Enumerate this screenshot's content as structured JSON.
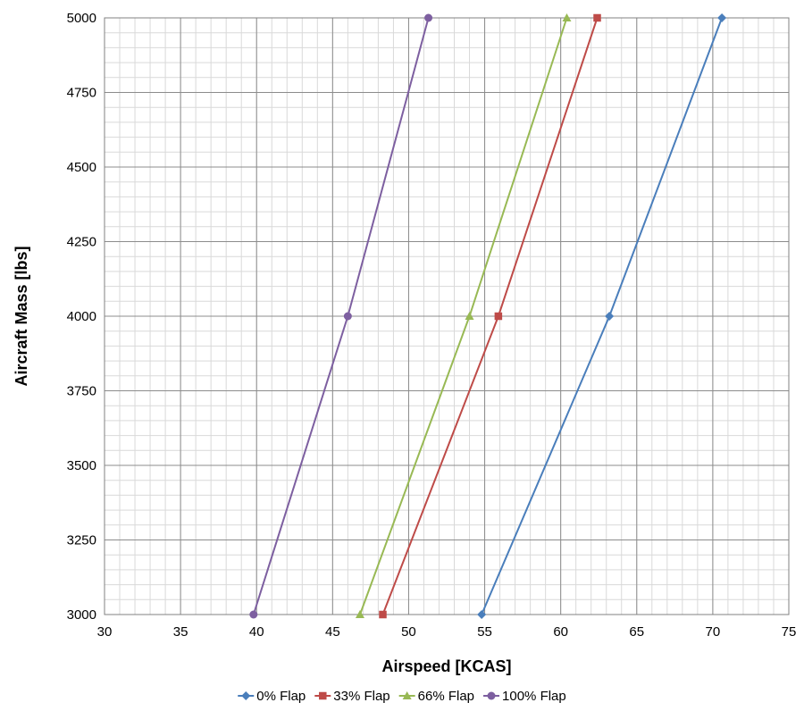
{
  "chart_data": {
    "type": "line",
    "title": "",
    "xlabel": "Airspeed [KCAS]",
    "ylabel": "Aircraft Mass [lbs]",
    "xlim": [
      30,
      75
    ],
    "ylim": [
      3000,
      5000
    ],
    "x_ticks": [
      30,
      35,
      40,
      45,
      50,
      55,
      60,
      65,
      70,
      75
    ],
    "y_ticks": [
      3000,
      3250,
      3500,
      3750,
      4000,
      4250,
      4500,
      4750,
      5000
    ],
    "x_ticks_text": [
      "30",
      "35",
      "40",
      "45",
      "50",
      "55",
      "60",
      "65",
      "70",
      "75"
    ],
    "y_ticks_text": [
      "3000",
      "3250",
      "3500",
      "3750",
      "4000",
      "4250",
      "4500",
      "4750",
      "5000"
    ],
    "grid": true,
    "legend_position": "bottom",
    "series": [
      {
        "name": "0% Flap",
        "color": "#4a7ebb",
        "marker": "diamond",
        "points": [
          {
            "x": 54.8,
            "y": 3000
          },
          {
            "x": 63.2,
            "y": 4000
          },
          {
            "x": 70.6,
            "y": 5000
          }
        ]
      },
      {
        "name": "33% Flap",
        "color": "#be4b48",
        "marker": "square",
        "points": [
          {
            "x": 48.3,
            "y": 3000
          },
          {
            "x": 55.9,
            "y": 4000
          },
          {
            "x": 62.4,
            "y": 5000
          }
        ]
      },
      {
        "name": "66% Flap",
        "color": "#98b954",
        "marker": "triangle",
        "points": [
          {
            "x": 46.8,
            "y": 3000
          },
          {
            "x": 54.0,
            "y": 4000
          },
          {
            "x": 60.4,
            "y": 5000
          }
        ]
      },
      {
        "name": "100% Flap",
        "color": "#7d5fa0",
        "marker": "circle",
        "points": [
          {
            "x": 39.8,
            "y": 3000
          },
          {
            "x": 46.0,
            "y": 4000
          },
          {
            "x": 51.3,
            "y": 5000
          }
        ]
      }
    ]
  }
}
